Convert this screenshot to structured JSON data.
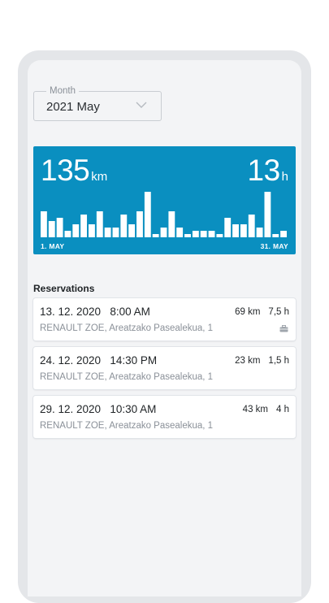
{
  "filter": {
    "label": "Month",
    "value": "2021 May"
  },
  "summary": {
    "distance_value": "135",
    "distance_unit": "km",
    "hours_value": "13",
    "hours_unit": "h",
    "axis_start": "1. MAY",
    "axis_end": "31. MAY",
    "colors": {
      "card": "#0a8fc0",
      "bars": "#ffffff"
    }
  },
  "chart_data": {
    "type": "bar",
    "categories": [
      "1",
      "2",
      "3",
      "4",
      "5",
      "6",
      "7",
      "8",
      "9",
      "10",
      "11",
      "12",
      "13",
      "14",
      "15",
      "16",
      "17",
      "18",
      "19",
      "20",
      "21",
      "22",
      "23",
      "24",
      "25",
      "26",
      "27",
      "28",
      "29",
      "30",
      "31"
    ],
    "values": [
      8,
      5,
      6,
      2,
      4,
      7,
      4,
      8,
      3,
      3,
      7,
      4,
      8,
      14,
      1,
      3,
      8,
      3,
      1,
      2,
      2,
      2,
      1,
      6,
      4,
      4,
      7,
      3,
      14,
      1,
      2
    ],
    "ylim": [
      0,
      15
    ],
    "xlabel": "",
    "ylabel": ""
  },
  "reservations": {
    "title": "Reservations",
    "items": [
      {
        "date": "13. 12. 2020",
        "time": "8:00 AM",
        "distance": "69 km",
        "duration": "7,5 h",
        "vehicle": "RENAULT ZOE, Areatzako Pasealekua, 1",
        "icon": "briefcase-icon",
        "has_icon": true
      },
      {
        "date": "24. 12. 2020",
        "time": "14:30 PM",
        "distance": "23 km",
        "duration": "1,5 h",
        "vehicle": "RENAULT ZOE, Areatzako Pasealekua, 1",
        "has_icon": false
      },
      {
        "date": "29. 12. 2020",
        "time": "10:30 AM",
        "distance": "43 km",
        "duration": "4 h",
        "vehicle": "RENAULT ZOE, Areatzako Pasealekua, 1",
        "has_icon": false
      }
    ]
  }
}
